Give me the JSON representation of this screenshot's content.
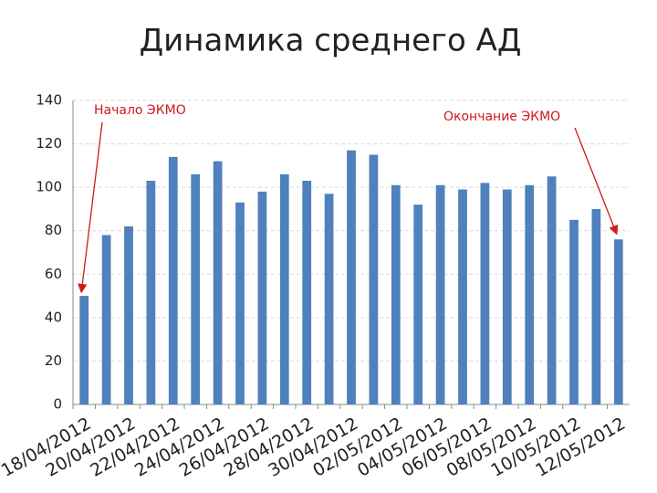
{
  "chart_data": {
    "type": "bar",
    "title": "Динамика среднего АД",
    "categories": [
      "18/04/2012",
      null,
      "20/04/2012",
      null,
      "22/04/2012",
      null,
      "24/04/2012",
      null,
      "26/04/2012",
      null,
      "28/04/2012",
      null,
      "30/04/2012",
      null,
      "02/05/2012",
      null,
      "04/05/2012",
      null,
      "06/05/2012",
      null,
      "08/05/2012",
      null,
      "10/05/2012",
      null,
      "12/05/2012"
    ],
    "values": [
      50,
      78,
      82,
      103,
      114,
      106,
      112,
      93,
      98,
      106,
      103,
      97,
      117,
      115,
      101,
      92,
      101,
      99,
      102,
      99,
      101,
      105,
      85,
      90,
      76
    ],
    "color": "#4f81bd",
    "ylim": [
      0,
      140
    ],
    "yticks": [
      0,
      20,
      40,
      60,
      80,
      100,
      120,
      140
    ],
    "grid": true,
    "annotations": [
      "Начало ЭКМО",
      "Окончание ЭКМО"
    ]
  }
}
